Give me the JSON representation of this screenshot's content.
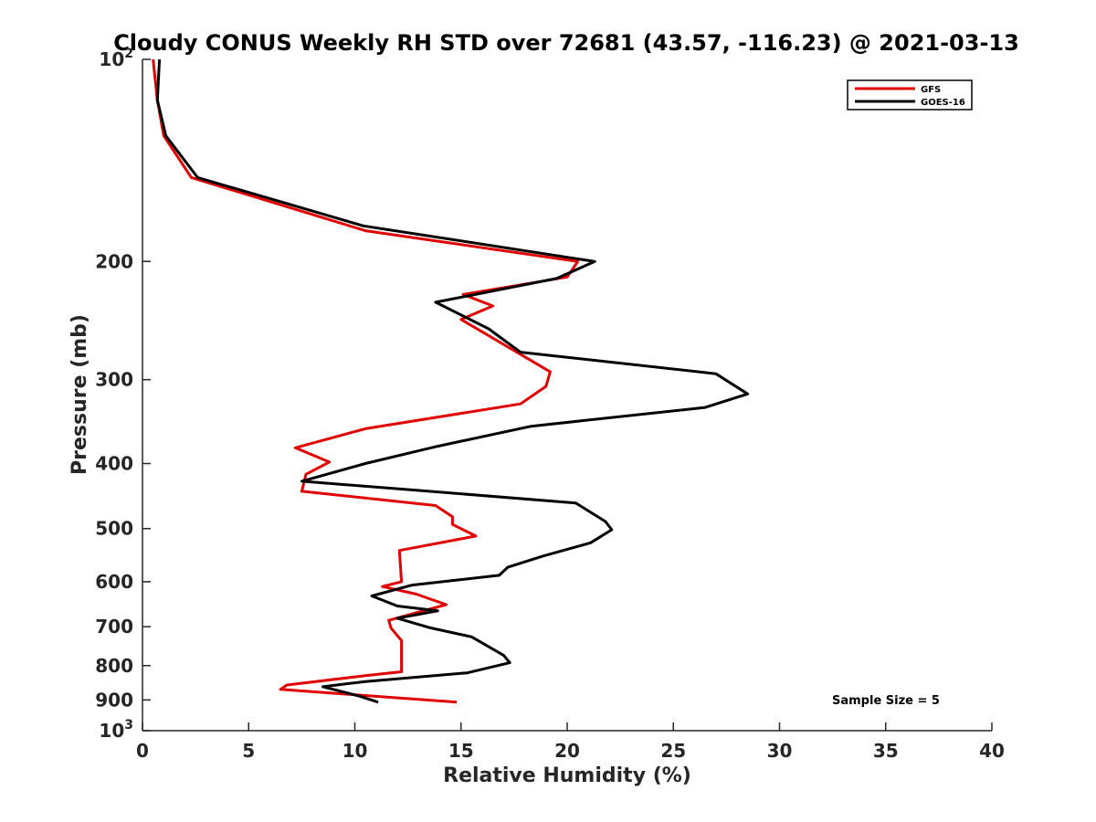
{
  "chart_data": {
    "type": "line",
    "title": "Cloudy CONUS Weekly RH STD over 72681 (43.57, -116.23) @ 2021-03-13",
    "xlabel": "Relative Humidity (%)",
    "ylabel": "Pressure (mb)",
    "xlim": [
      0,
      40
    ],
    "ylim": [
      100,
      1000
    ],
    "y_scale": "log",
    "y_reversed": true,
    "grid": false,
    "legend_position": "top-right",
    "x_ticks": [
      "0",
      "5",
      "10",
      "15",
      "20",
      "25",
      "30",
      "35",
      "40"
    ],
    "y_ticks": [
      {
        "value": 100,
        "base": "10",
        "exp": "2"
      },
      {
        "value": 200,
        "label": "200"
      },
      {
        "value": 300,
        "label": "300"
      },
      {
        "value": 400,
        "label": "400"
      },
      {
        "value": 500,
        "label": "500"
      },
      {
        "value": 600,
        "label": "600"
      },
      {
        "value": 700,
        "label": "700"
      },
      {
        "value": 800,
        "label": "800"
      },
      {
        "value": 900,
        "label": "900"
      },
      {
        "value": 1000,
        "base": "10",
        "exp": "3"
      }
    ],
    "annotation": "Sample Size = 5",
    "series": [
      {
        "name": "GFS",
        "color": "#e00000",
        "points": [
          [
            0.5,
            100
          ],
          [
            0.7,
            115
          ],
          [
            1.0,
            130
          ],
          [
            2.3,
            150
          ],
          [
            10.5,
            180
          ],
          [
            20.5,
            200
          ],
          [
            20.0,
            211
          ],
          [
            15.1,
            224
          ],
          [
            16.5,
            233
          ],
          [
            15.0,
            244
          ],
          [
            19.2,
            292
          ],
          [
            19.0,
            307
          ],
          [
            17.8,
            326
          ],
          [
            10.5,
            355
          ],
          [
            7.2,
            379
          ],
          [
            8.8,
            398
          ],
          [
            7.7,
            415
          ],
          [
            7.5,
            440
          ],
          [
            13.8,
            462
          ],
          [
            14.6,
            480
          ],
          [
            14.6,
            493
          ],
          [
            15.7,
            513
          ],
          [
            12.1,
            539
          ],
          [
            12.2,
            600
          ],
          [
            11.3,
            610
          ],
          [
            12.9,
            626
          ],
          [
            14.3,
            649
          ],
          [
            11.6,
            685
          ],
          [
            11.7,
            703
          ],
          [
            12.2,
            734
          ],
          [
            12.2,
            817
          ],
          [
            10.5,
            828
          ],
          [
            6.8,
            855
          ],
          [
            6.5,
            868
          ],
          [
            14.8,
            907
          ]
        ]
      },
      {
        "name": "GOES-16",
        "color": "#000000",
        "points": [
          [
            0.8,
            100
          ],
          [
            0.7,
            115
          ],
          [
            1.1,
            130
          ],
          [
            2.6,
            150
          ],
          [
            10.4,
            177
          ],
          [
            21.3,
            200
          ],
          [
            19.5,
            212
          ],
          [
            13.8,
            230
          ],
          [
            16.3,
            252
          ],
          [
            17.8,
            273
          ],
          [
            27.0,
            294
          ],
          [
            28.5,
            315
          ],
          [
            26.5,
            330
          ],
          [
            18.3,
            352
          ],
          [
            13.9,
            377
          ],
          [
            10.5,
            400
          ],
          [
            7.5,
            425
          ],
          [
            13.5,
            440
          ],
          [
            20.4,
            458
          ],
          [
            21.8,
            488
          ],
          [
            22.1,
            502
          ],
          [
            21.1,
            525
          ],
          [
            18.9,
            549
          ],
          [
            17.2,
            571
          ],
          [
            16.8,
            587
          ],
          [
            12.7,
            607
          ],
          [
            10.8,
            630
          ],
          [
            12.0,
            652
          ],
          [
            13.9,
            663
          ],
          [
            12.0,
            680
          ],
          [
            13.5,
            702
          ],
          [
            15.5,
            725
          ],
          [
            17.0,
            772
          ],
          [
            17.3,
            792
          ],
          [
            15.3,
            820
          ],
          [
            10.5,
            845
          ],
          [
            8.5,
            860
          ],
          [
            10.2,
            888
          ],
          [
            11.1,
            907
          ]
        ]
      }
    ]
  }
}
